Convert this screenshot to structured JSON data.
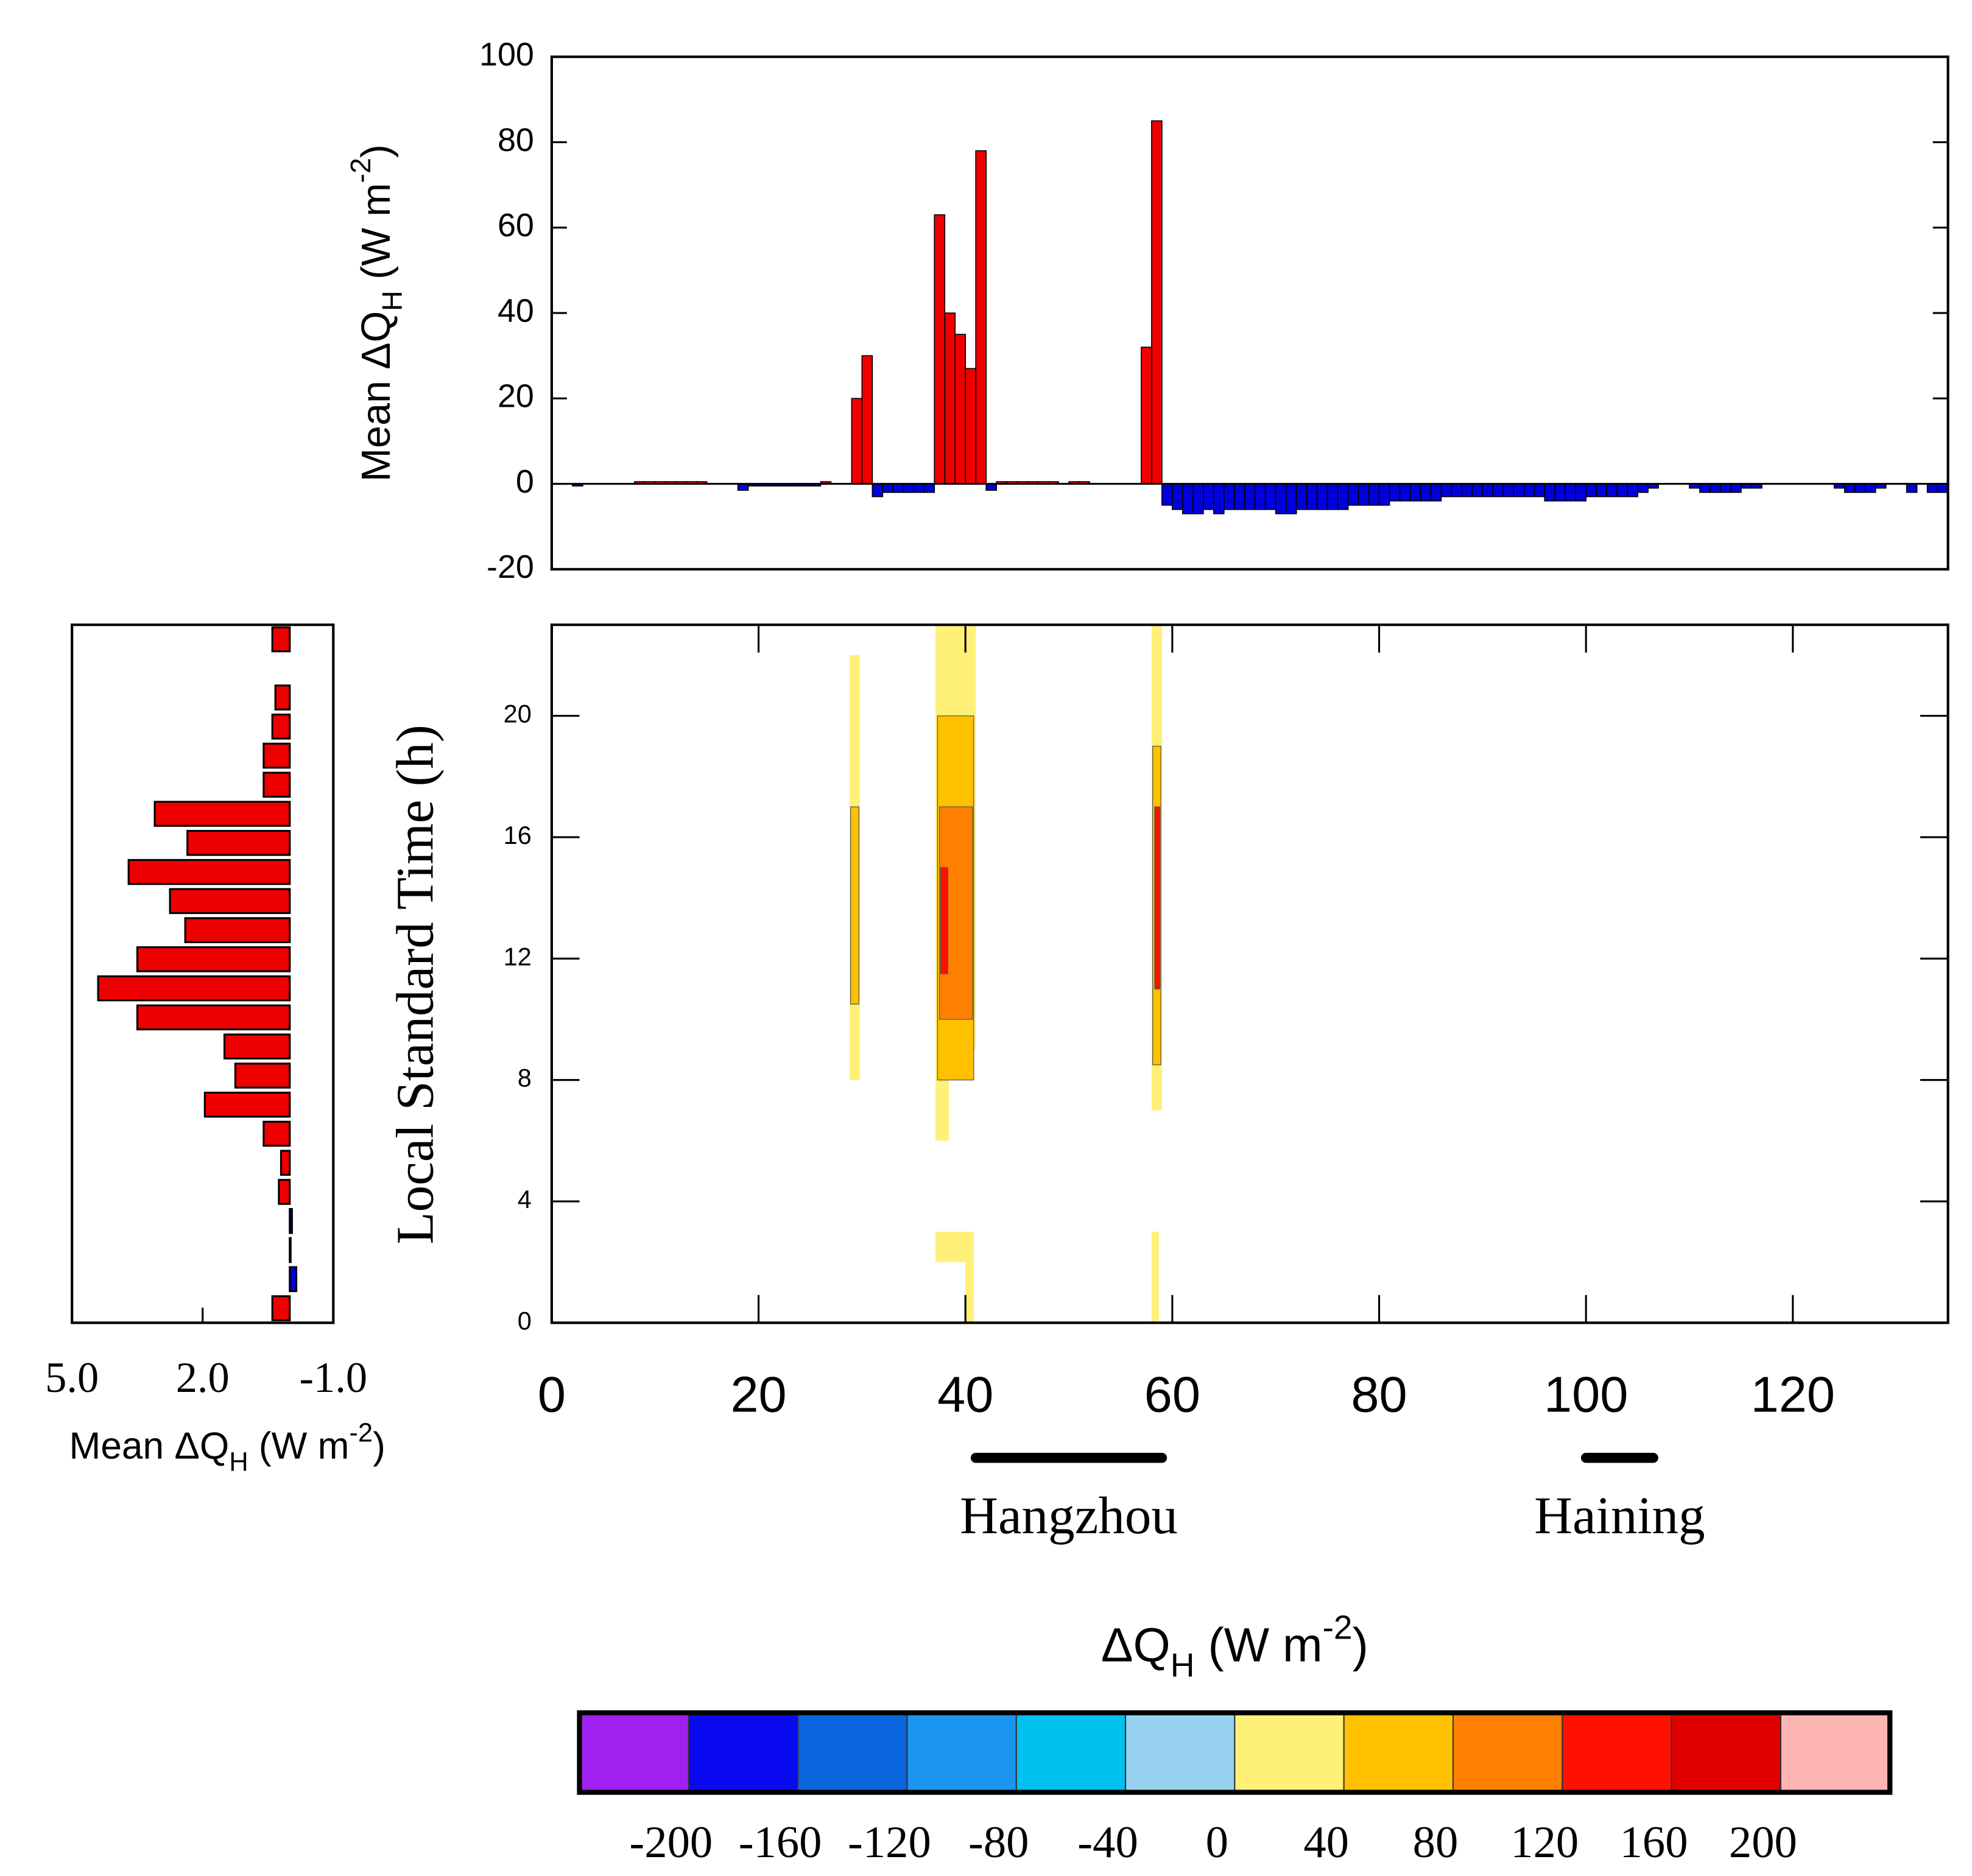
{
  "chart_data": [
    {
      "type": "bar",
      "y_label": [
        "Mean ΔQ",
        "H",
        " (W m",
        "-2",
        ")"
      ],
      "xlim": [
        0,
        135
      ],
      "ylim": [
        -20,
        100
      ],
      "yticks": [
        -20,
        0,
        20,
        40,
        60,
        80,
        100
      ],
      "color_positive": "#ee0000",
      "color_negative": "#0000dd",
      "x": [
        0,
        1,
        2,
        3,
        4,
        5,
        6,
        7,
        8,
        9,
        10,
        11,
        12,
        13,
        14,
        15,
        16,
        17,
        18,
        19,
        20,
        21,
        22,
        23,
        24,
        25,
        26,
        27,
        28,
        29,
        30,
        31,
        32,
        33,
        34,
        35,
        36,
        37,
        38,
        39,
        40,
        41,
        42,
        43,
        44,
        45,
        46,
        47,
        48,
        49,
        50,
        51,
        52,
        53,
        54,
        55,
        56,
        57,
        58,
        59,
        60,
        61,
        62,
        63,
        64,
        65,
        66,
        67,
        68,
        69,
        70,
        71,
        72,
        73,
        74,
        75,
        76,
        77,
        78,
        79,
        80,
        81,
        82,
        83,
        84,
        85,
        86,
        87,
        88,
        89,
        90,
        91,
        92,
        93,
        94,
        95,
        96,
        97,
        98,
        99,
        100,
        101,
        102,
        103,
        104,
        105,
        106,
        107,
        108,
        109,
        110,
        111,
        112,
        113,
        114,
        115,
        116,
        117,
        118,
        119,
        120,
        121,
        122,
        123,
        124,
        125,
        126,
        127,
        128,
        129,
        130,
        131,
        132,
        133,
        134
      ],
      "values": [
        0,
        0,
        -0.5,
        0,
        0,
        0,
        0,
        0,
        0.5,
        0.5,
        0.5,
        0.5,
        0.5,
        0.5,
        0.5,
        0,
        0,
        0,
        -1.5,
        -0.5,
        -0.5,
        -0.5,
        -0.5,
        -0.5,
        -0.5,
        -0.5,
        0.5,
        0,
        0,
        20,
        30,
        -3,
        -2,
        -2,
        -2,
        -2,
        -2,
        63,
        40,
        35,
        27,
        78,
        -1.5,
        0.5,
        0.5,
        0.5,
        0.5,
        0.5,
        0.5,
        0,
        0.5,
        0.5,
        0,
        0,
        0,
        0,
        0,
        32,
        85,
        -5,
        -6,
        -7,
        -7,
        -6,
        -7,
        -6,
        -6,
        -6,
        -6,
        -6,
        -7,
        -7,
        -6,
        -6,
        -6,
        -6,
        -6,
        -5,
        -5,
        -5,
        -5,
        -4,
        -4,
        -4,
        -4,
        -4,
        -3,
        -3,
        -3,
        -3,
        -3,
        -3,
        -3,
        -3,
        -3,
        -3,
        -4,
        -4,
        -4,
        -4,
        -3,
        -3,
        -3,
        -3,
        -3,
        -2,
        -1,
        0,
        0,
        0,
        -1,
        -2,
        -2,
        -2,
        -2,
        -1,
        -1,
        0,
        0,
        0,
        0,
        0,
        0,
        0,
        -1,
        -2,
        -2,
        -2,
        -1,
        0,
        0,
        -2,
        0,
        -2,
        -2
      ]
    },
    {
      "type": "barh",
      "x_label": [
        "Mean ΔQ",
        "H",
        " (W m",
        "-2",
        ")"
      ],
      "xlim": [
        5,
        -1
      ],
      "xticks": [
        {
          "value": 5,
          "label": "5.0"
        },
        {
          "value": 2,
          "label": "2.0"
        },
        {
          "value": -1,
          "label": "-1.0"
        }
      ],
      "ylim": [
        0,
        24
      ],
      "color_positive": "#ee0000",
      "color_negative": "#0000dd",
      "y": [
        0,
        1,
        2,
        3,
        4,
        5,
        6,
        7,
        8,
        9,
        10,
        11,
        12,
        13,
        14,
        15,
        16,
        17,
        18,
        19,
        20,
        21,
        22,
        23
      ],
      "values": [
        0.4,
        -0.15,
        -0.02,
        -0.05,
        0.25,
        0.2,
        0.6,
        1.95,
        1.25,
        1.5,
        3.5,
        4.4,
        3.5,
        2.4,
        2.75,
        3.7,
        2.35,
        3.1,
        0.6,
        0.6,
        0.4,
        0.33,
        0,
        0.4
      ]
    },
    {
      "type": "contour",
      "y_label": "Local Standard Time (h)",
      "xlim": [
        0,
        135
      ],
      "xticks": [
        0,
        20,
        40,
        60,
        80,
        100,
        120
      ],
      "ylim": [
        0,
        23
      ],
      "yticks": [
        0,
        4,
        8,
        12,
        16,
        20
      ],
      "regions": [
        {
          "x": [
            28.8,
            29.8
          ],
          "y": [
            8,
            22
          ],
          "color": "#fff078"
        },
        {
          "x": [
            28.9,
            29.7
          ],
          "y": [
            10.5,
            17
          ],
          "color": "#ffc000"
        },
        {
          "x": [
            37.1,
            41.0
          ],
          "y": [
            9,
            23
          ],
          "color": "#fff078"
        },
        {
          "x": [
            37.1,
            38.4
          ],
          "y": [
            6,
            9
          ],
          "color": "#fff078"
        },
        {
          "x": [
            37.3,
            40.8
          ],
          "y": [
            8,
            20
          ],
          "color": "#ffc000"
        },
        {
          "x": [
            37.5,
            40.7
          ],
          "y": [
            10,
            17
          ],
          "color": "#ff8000"
        },
        {
          "x": [
            37.6,
            38.3
          ],
          "y": [
            11.5,
            15
          ],
          "color": "#ff1000"
        },
        {
          "x": [
            58.0,
            59.0
          ],
          "y": [
            7,
            23
          ],
          "color": "#fff078"
        },
        {
          "x": [
            58.1,
            58.9
          ],
          "y": [
            8.5,
            19
          ],
          "color": "#ffc000"
        },
        {
          "x": [
            58.3,
            58.8
          ],
          "y": [
            11,
            17
          ],
          "color": "#ff1000"
        },
        {
          "x": [
            37.1,
            40.3
          ],
          "y": [
            2,
            3
          ],
          "color": "#fff078"
        },
        {
          "x": [
            40.0,
            40.8
          ],
          "y": [
            0,
            3
          ],
          "color": "#fff078"
        },
        {
          "x": [
            58.0,
            58.7
          ],
          "y": [
            0,
            3
          ],
          "color": "#fff078"
        }
      ],
      "annotations": [
        {
          "text": "Hangzhou",
          "x": [
            41,
            59
          ]
        },
        {
          "text": "Haining",
          "x": [
            100,
            106.5
          ]
        }
      ]
    },
    {
      "type": "colorbar",
      "title": [
        "ΔQ",
        "H",
        " (W m",
        "-2",
        ")"
      ],
      "levels": [
        -200,
        -160,
        -120,
        -80,
        -40,
        0,
        40,
        80,
        120,
        160,
        200
      ],
      "colors": [
        "#a020f0",
        "#0a0af0",
        "#0a64dc",
        "#1a96f0",
        "#00c0f0",
        "#96d2f0",
        "#fff078",
        "#ffc000",
        "#ff8000",
        "#ff1000",
        "#e00000",
        "#ffb4b4"
      ]
    }
  ]
}
